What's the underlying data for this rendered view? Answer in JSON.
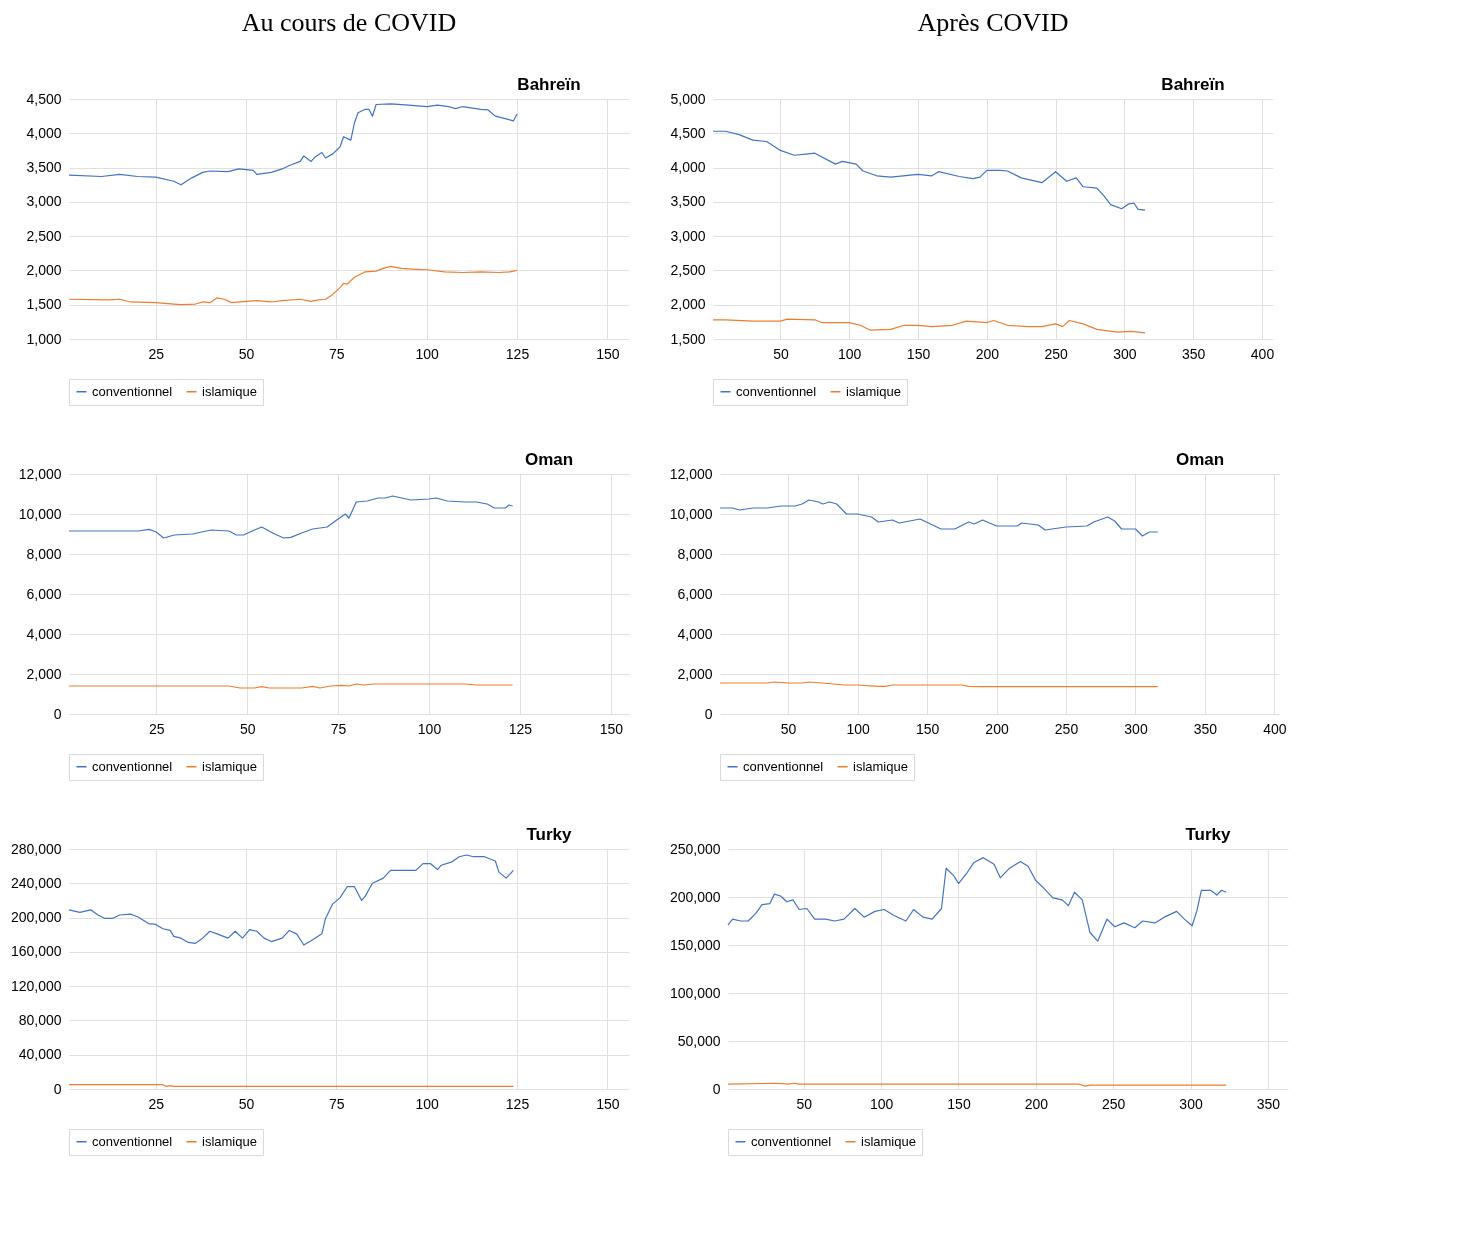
{
  "chart_data": [
    {
      "type": "line",
      "title": "Au cours de COVID",
      "annotations": [
        "Bahreïn"
      ],
      "xlim": [
        1,
        156
      ],
      "xticks": [
        25,
        50,
        75,
        100,
        125,
        150
      ],
      "ylim": [
        1000,
        4500
      ],
      "yticks": [
        {
          "value": 1000,
          "label": "1,000"
        },
        {
          "value": 1500,
          "label": "1,500"
        },
        {
          "value": 2000,
          "label": "2,000"
        },
        {
          "value": 2500,
          "label": "2,500"
        },
        {
          "value": 3000,
          "label": "3,000"
        },
        {
          "value": 3500,
          "label": "3,500"
        },
        {
          "value": 4000,
          "label": "4,000"
        },
        {
          "value": 4500,
          "label": "4,500"
        }
      ],
      "grid": true,
      "legend": "bottom",
      "series": [
        {
          "name": "conventionnel",
          "color": "#4472c4",
          "x": [
            1,
            10,
            15,
            20,
            25,
            30,
            32,
            35,
            38,
            40,
            45,
            48,
            52,
            53,
            57,
            60,
            62,
            65,
            66,
            68,
            69,
            71,
            72,
            74,
            76,
            77,
            79,
            80,
            81,
            83,
            84,
            85,
            86,
            90,
            95,
            100,
            103,
            106,
            108,
            110,
            115,
            117,
            119,
            122,
            124,
            125
          ],
          "values": [
            3390,
            3370,
            3400,
            3370,
            3360,
            3300,
            3250,
            3350,
            3430,
            3450,
            3440,
            3480,
            3460,
            3400,
            3430,
            3480,
            3530,
            3590,
            3670,
            3590,
            3650,
            3720,
            3640,
            3700,
            3800,
            3950,
            3900,
            4150,
            4300,
            4350,
            4350,
            4250,
            4420,
            4430,
            4410,
            4390,
            4410,
            4390,
            4360,
            4390,
            4350,
            4340,
            4250,
            4210,
            4180,
            4280
          ]
        },
        {
          "name": "islamique",
          "color": "#ed7d31",
          "x": [
            1,
            12,
            15,
            18,
            25,
            30,
            32,
            36,
            38,
            40,
            42,
            44,
            46,
            50,
            53,
            57,
            60,
            65,
            68,
            70,
            72,
            74,
            76,
            77,
            78,
            80,
            83,
            86,
            88,
            90,
            93,
            96,
            100,
            105,
            110,
            115,
            120,
            123,
            125
          ],
          "values": [
            1580,
            1570,
            1580,
            1540,
            1530,
            1510,
            1500,
            1510,
            1540,
            1530,
            1600,
            1580,
            1530,
            1550,
            1560,
            1540,
            1560,
            1580,
            1550,
            1570,
            1580,
            1650,
            1750,
            1810,
            1800,
            1900,
            1980,
            1990,
            2030,
            2060,
            2030,
            2020,
            2010,
            1980,
            1970,
            1980,
            1970,
            1980,
            2000
          ]
        }
      ]
    },
    {
      "type": "line",
      "title": "Après COVID",
      "annotations": [
        "Bahreïn"
      ],
      "xlim": [
        1,
        408
      ],
      "xticks": [
        50,
        100,
        150,
        200,
        250,
        300,
        350,
        400
      ],
      "ylim": [
        1500,
        5000
      ],
      "yticks": [
        {
          "value": 1500,
          "label": "1,500"
        },
        {
          "value": 2000,
          "label": "2,000"
        },
        {
          "value": 2500,
          "label": "2,500"
        },
        {
          "value": 3000,
          "label": "3,000"
        },
        {
          "value": 3500,
          "label": "3,500"
        },
        {
          "value": 4000,
          "label": "4,000"
        },
        {
          "value": 4500,
          "label": "4,500"
        },
        {
          "value": 5000,
          "label": "5,000"
        }
      ],
      "grid": true,
      "legend": "bottom",
      "series": [
        {
          "name": "conventionnel",
          "color": "#4472c4",
          "x": [
            1,
            10,
            20,
            30,
            40,
            50,
            60,
            70,
            75,
            90,
            95,
            105,
            110,
            120,
            130,
            150,
            160,
            165,
            180,
            190,
            195,
            200,
            210,
            215,
            225,
            240,
            250,
            258,
            265,
            270,
            280,
            285,
            290,
            298,
            303,
            307,
            310,
            315
          ],
          "values": [
            4530,
            4530,
            4480,
            4400,
            4380,
            4250,
            4180,
            4200,
            4210,
            4050,
            4090,
            4050,
            3950,
            3880,
            3860,
            3900,
            3880,
            3940,
            3870,
            3840,
            3860,
            3960,
            3960,
            3950,
            3850,
            3780,
            3940,
            3800,
            3850,
            3720,
            3700,
            3590,
            3460,
            3400,
            3470,
            3480,
            3390,
            3380
          ]
        },
        {
          "name": "islamique",
          "color": "#ed7d31",
          "x": [
            1,
            10,
            30,
            50,
            55,
            75,
            80,
            100,
            108,
            115,
            130,
            140,
            150,
            160,
            175,
            185,
            200,
            205,
            215,
            230,
            240,
            250,
            255,
            260,
            270,
            280,
            295,
            305,
            315
          ],
          "values": [
            1780,
            1780,
            1760,
            1760,
            1790,
            1780,
            1740,
            1740,
            1700,
            1630,
            1640,
            1700,
            1700,
            1680,
            1700,
            1760,
            1740,
            1770,
            1700,
            1680,
            1680,
            1720,
            1680,
            1770,
            1720,
            1640,
            1600,
            1610,
            1590
          ]
        }
      ]
    },
    {
      "type": "line",
      "annotations": [
        "Oman"
      ],
      "xlim": [
        1,
        155
      ],
      "xticks": [
        25,
        50,
        75,
        100,
        125,
        150
      ],
      "ylim": [
        0,
        12000
      ],
      "yticks": [
        0,
        {
          "value": 2000,
          "label": "2,000"
        },
        {
          "value": 4000,
          "label": "4,000"
        },
        {
          "value": 6000,
          "label": "6,000"
        },
        {
          "value": 8000,
          "label": "8,000"
        },
        {
          "value": 10000,
          "label": "10,000"
        },
        {
          "value": 12000,
          "label": "12,000"
        }
      ],
      "grid": true,
      "legend": "bottom",
      "series": [
        {
          "name": "conventionnel",
          "color": "#4472c4",
          "x": [
            1,
            10,
            20,
            23,
            25,
            27,
            30,
            35,
            40,
            45,
            47,
            49,
            52,
            54,
            57,
            60,
            62,
            65,
            68,
            72,
            75,
            77,
            78,
            80,
            83,
            86,
            88,
            90,
            95,
            100,
            102,
            105,
            110,
            113,
            116,
            118,
            121,
            122,
            123
          ],
          "values": [
            9150,
            9150,
            9150,
            9230,
            9100,
            8800,
            8950,
            9000,
            9200,
            9150,
            8950,
            8950,
            9200,
            9350,
            9050,
            8800,
            8830,
            9050,
            9250,
            9350,
            9750,
            10000,
            9800,
            10600,
            10650,
            10800,
            10800,
            10900,
            10700,
            10750,
            10800,
            10650,
            10600,
            10600,
            10500,
            10300,
            10300,
            10450,
            10400
          ]
        },
        {
          "name": "islamique",
          "color": "#ed7d31",
          "x": [
            1,
            45,
            48,
            52,
            54,
            56,
            65,
            68,
            70,
            73,
            76,
            78,
            80,
            82,
            85,
            110,
            113,
            123
          ],
          "values": [
            1400,
            1400,
            1300,
            1300,
            1370,
            1300,
            1300,
            1380,
            1300,
            1400,
            1430,
            1400,
            1500,
            1450,
            1500,
            1500,
            1450,
            1450
          ]
        }
      ]
    },
    {
      "type": "line",
      "annotations": [
        "Oman"
      ],
      "xlim": [
        1,
        404
      ],
      "xticks": [
        50,
        100,
        150,
        200,
        250,
        300,
        350,
        400
      ],
      "ylim": [
        0,
        12000
      ],
      "yticks": [
        0,
        {
          "value": 2000,
          "label": "2,000"
        },
        {
          "value": 4000,
          "label": "4,000"
        },
        {
          "value": 6000,
          "label": "6,000"
        },
        {
          "value": 8000,
          "label": "8,000"
        },
        {
          "value": 10000,
          "label": "10,000"
        },
        {
          "value": 12000,
          "label": "12,000"
        }
      ],
      "grid": true,
      "legend": "bottom",
      "series": [
        {
          "name": "conventionnel",
          "color": "#4472c4",
          "x": [
            1,
            10,
            15,
            25,
            35,
            45,
            55,
            60,
            65,
            72,
            75,
            80,
            85,
            92,
            100,
            110,
            115,
            125,
            130,
            145,
            160,
            170,
            180,
            184,
            190,
            200,
            215,
            218,
            230,
            235,
            250,
            265,
            270,
            280,
            285,
            290,
            300,
            305,
            310,
            316
          ],
          "values": [
            10300,
            10300,
            10200,
            10300,
            10300,
            10400,
            10400,
            10500,
            10700,
            10600,
            10500,
            10600,
            10500,
            10000,
            10000,
            9850,
            9600,
            9700,
            9550,
            9750,
            9250,
            9250,
            9600,
            9500,
            9700,
            9400,
            9400,
            9550,
            9450,
            9200,
            9350,
            9400,
            9600,
            9850,
            9650,
            9250,
            9250,
            8900,
            9100,
            9100
          ]
        },
        {
          "name": "islamique",
          "color": "#ed7d31",
          "x": [
            1,
            35,
            40,
            50,
            60,
            65,
            75,
            90,
            100,
            115,
            120,
            125,
            175,
            180,
            190,
            316
          ],
          "values": [
            1550,
            1550,
            1600,
            1550,
            1550,
            1600,
            1550,
            1450,
            1450,
            1380,
            1380,
            1450,
            1450,
            1380,
            1370,
            1370
          ]
        }
      ]
    },
    {
      "type": "line",
      "annotations": [
        "Turky"
      ],
      "xlim": [
        1,
        156
      ],
      "xticks": [
        25,
        50,
        75,
        100,
        125,
        150
      ],
      "ylim": [
        0,
        280000
      ],
      "yticks": [
        0,
        {
          "value": 40000,
          "label": "40,000"
        },
        {
          "value": 80000,
          "label": "80,000"
        },
        {
          "value": 120000,
          "label": "120,000"
        },
        {
          "value": 160000,
          "label": "160,000"
        },
        {
          "value": 200000,
          "label": "200,000"
        },
        {
          "value": 240000,
          "label": "240,000"
        },
        {
          "value": 280000,
          "label": "280,000"
        }
      ],
      "grid": true,
      "legend": "bottom",
      "series": [
        {
          "name": "conventionnel",
          "color": "#4472c4",
          "x": [
            1,
            4,
            7,
            9,
            11,
            13,
            15,
            18,
            20,
            23,
            25,
            27,
            29,
            30,
            32,
            34,
            36,
            38,
            40,
            42,
            45,
            47,
            49,
            51,
            53,
            55,
            57,
            60,
            62,
            64,
            66,
            68,
            71,
            72,
            74,
            76,
            78,
            80,
            82,
            83,
            85,
            88,
            90,
            94,
            97,
            99,
            101,
            103,
            104,
            107,
            109,
            111,
            113,
            116,
            119,
            120,
            122,
            124
          ],
          "values": [
            209000,
            206000,
            209000,
            203000,
            199000,
            199000,
            203000,
            204000,
            201000,
            193000,
            192000,
            187000,
            185000,
            178000,
            176000,
            171000,
            170000,
            176000,
            184000,
            181000,
            176000,
            184000,
            176000,
            186000,
            184000,
            176000,
            172000,
            176000,
            185000,
            181000,
            168000,
            173000,
            181000,
            199000,
            216000,
            223000,
            236000,
            236000,
            220000,
            225000,
            240000,
            246000,
            255000,
            255000,
            255000,
            263000,
            263000,
            256000,
            261000,
            265000,
            271000,
            273000,
            271000,
            271000,
            266000,
            253000,
            246000,
            255000
          ]
        },
        {
          "name": "islamique",
          "color": "#ed7d31",
          "x": [
            1,
            27,
            28,
            29,
            30,
            124
          ],
          "values": [
            5000,
            5000,
            3000,
            4000,
            3000,
            3000
          ]
        }
      ]
    },
    {
      "type": "line",
      "annotations": [
        "Turky"
      ],
      "xlim": [
        1,
        363
      ],
      "xticks": [
        50,
        100,
        150,
        200,
        250,
        300,
        350
      ],
      "ylim": [
        0,
        250000
      ],
      "yticks": [
        0,
        {
          "value": 50000,
          "label": "50,000"
        },
        {
          "value": 100000,
          "label": "100,000"
        },
        {
          "value": 150000,
          "label": "150,000"
        },
        {
          "value": 200000,
          "label": "200,000"
        },
        {
          "value": 250000,
          "label": "250,000"
        }
      ],
      "grid": true,
      "legend": "bottom",
      "series": [
        {
          "name": "conventionnel",
          "color": "#4472c4",
          "x": [
            1,
            4,
            9,
            14,
            19,
            23,
            28,
            31,
            35,
            39,
            43,
            47,
            52,
            57,
            64,
            70,
            76,
            83,
            89,
            96,
            102,
            108,
            116,
            121,
            127,
            133,
            139,
            142,
            147,
            150,
            155,
            160,
            166,
            173,
            177,
            183,
            190,
            195,
            200,
            204,
            211,
            217,
            221,
            225,
            230,
            235,
            240,
            246,
            251,
            257,
            264,
            269,
            277,
            283,
            291,
            296,
            301,
            304,
            307,
            313,
            317,
            320,
            323
          ],
          "values": [
            171000,
            177000,
            175000,
            175000,
            183000,
            192000,
            193000,
            203000,
            201000,
            195000,
            197000,
            187000,
            188000,
            177000,
            177000,
            175000,
            177000,
            188000,
            179000,
            185000,
            187000,
            181000,
            175000,
            187000,
            179000,
            177000,
            188000,
            230000,
            222000,
            214000,
            224000,
            236000,
            241000,
            234000,
            220000,
            230000,
            237000,
            232000,
            217000,
            211000,
            199000,
            197000,
            191000,
            205000,
            197000,
            163000,
            154000,
            177000,
            169000,
            173000,
            168000,
            175000,
            173000,
            179000,
            185000,
            177000,
            170000,
            185000,
            207000,
            207000,
            202000,
            207000,
            205000
          ]
        },
        {
          "name": "islamique",
          "color": "#ed7d31",
          "x": [
            1,
            32,
            40,
            44,
            47,
            228,
            232,
            235,
            323
          ],
          "values": [
            5000,
            6000,
            5000,
            6000,
            5000,
            5000,
            3000,
            4000,
            4000
          ]
        }
      ]
    }
  ]
}
